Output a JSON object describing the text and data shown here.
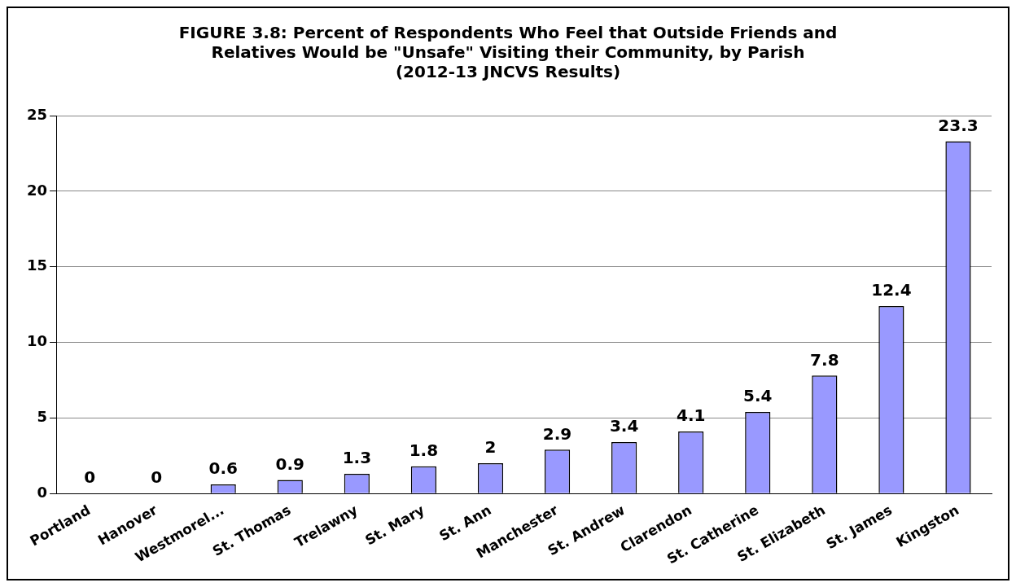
{
  "chart_data": {
    "type": "bar",
    "title": "FIGURE 3.8: Percent of Respondents Who Feel that Outside Friends and\nRelatives Would be \"Unsafe\" Visiting their Community, by Parish\n(2012-13 JNCVS Results)",
    "categories": [
      "Portland",
      "Hanover",
      "Westmorel...",
      "St. Thomas",
      "Trelawny",
      "St. Mary",
      "St. Ann",
      "Manchester",
      "St. Andrew",
      "Clarendon",
      "St. Catherine",
      "St. Elizabeth",
      "St. James",
      "Kingston"
    ],
    "values": [
      0,
      0,
      0.6,
      0.9,
      1.3,
      1.8,
      2,
      2.9,
      3.4,
      4.1,
      5.4,
      7.8,
      12.4,
      23.3
    ],
    "color": "#9999ff",
    "ylim": [
      0,
      25
    ],
    "yticks": [
      0,
      5,
      10,
      15,
      20,
      25
    ],
    "grid": "y",
    "legend": false,
    "data_labels": true
  }
}
